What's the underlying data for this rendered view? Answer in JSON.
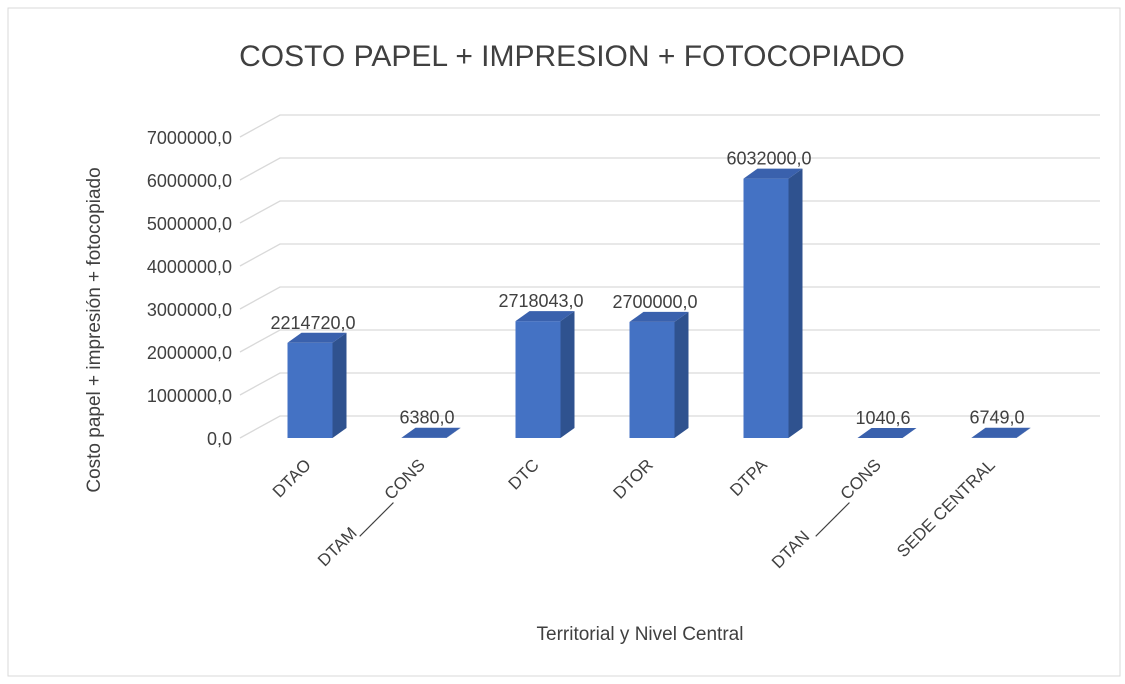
{
  "chart_data": {
    "type": "bar3d",
    "title": "COSTO PAPEL + IMPRESION + FOTOCOPIADO",
    "x_label": "Territorial y Nivel Central",
    "y_label": "Costo papel + impresión + fotocopiado",
    "categories": [
      "DTAO",
      "DTAM_____CONS",
      "DTC",
      "DTOR",
      "DTPA",
      "DTAN _____CONS",
      "SEDE CENTRAL"
    ],
    "values": [
      2214720,
      6380,
      2718043,
      2700000,
      6032000,
      1040.6,
      6749
    ],
    "value_labels": [
      "2214720,0",
      "6380,0",
      "2718043,0",
      "2700000,0",
      "6032000,0",
      "1040,6",
      "6749,0"
    ],
    "color": "#4472c4",
    "ylim": [
      0,
      7000000
    ],
    "yticks": [
      {
        "value": 0,
        "label": "0,0"
      },
      {
        "value": 1000000,
        "label": "1000000,0"
      },
      {
        "value": 2000000,
        "label": "2000000,0"
      },
      {
        "value": 3000000,
        "label": "3000000,0"
      },
      {
        "value": 4000000,
        "label": "4000000,0"
      },
      {
        "value": 5000000,
        "label": "5000000,0"
      },
      {
        "value": 6000000,
        "label": "6000000,0"
      },
      {
        "value": 7000000,
        "label": "7000000,0"
      }
    ],
    "grid": true
  }
}
